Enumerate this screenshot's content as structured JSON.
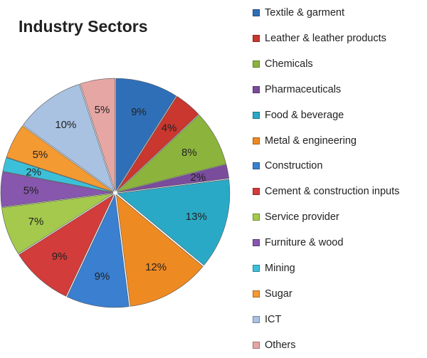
{
  "chart_data": {
    "type": "pie",
    "title": "Industry Sectors",
    "legend_position": "right",
    "categories": [
      "Textile & garment",
      "Leather & leather products",
      "Chemicals",
      "Pharmaceuticals",
      "Food & beverage",
      "Metal & engineering",
      "Construction",
      "Cement & construction inputs",
      "Service provider",
      "Furniture & wood",
      "Mining",
      "Sugar",
      "ICT",
      "Others"
    ],
    "values": [
      9,
      4,
      8,
      2,
      13,
      12,
      9,
      9,
      7,
      5,
      2,
      5,
      10,
      5
    ],
    "labels": [
      "9%",
      "4%",
      "8%",
      "2%",
      "13%",
      "12%",
      "9%",
      "9%",
      "7%",
      "5%",
      "2%",
      "5%",
      "10%",
      "5%"
    ],
    "colors": [
      "#2f6fb8",
      "#c9372f",
      "#8cb43c",
      "#7a4c9c",
      "#2aa9c6",
      "#ee8a22",
      "#3a7fd0",
      "#d23c3a",
      "#a4c94c",
      "#8756ad",
      "#3cc0da",
      "#f49a32",
      "#a9c2e2",
      "#e6a6a4"
    ]
  }
}
